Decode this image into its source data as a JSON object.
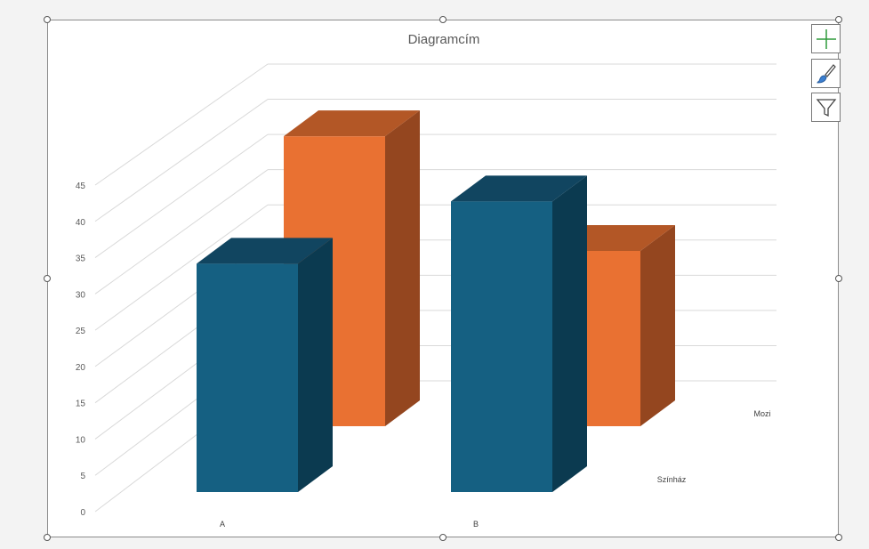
{
  "chart_data": {
    "type": "bar",
    "title": "Diagramcím",
    "categories": [
      "A",
      "B"
    ],
    "series": [
      {
        "name": "Színház",
        "values": [
          33,
          42
        ]
      },
      {
        "name": "Mozi",
        "values": [
          43,
          26
        ]
      }
    ],
    "yticks": [
      "0",
      "5",
      "10",
      "15",
      "20",
      "25",
      "30",
      "35",
      "40",
      "45"
    ],
    "ylim": [
      0,
      45
    ],
    "grid": true,
    "legend": "none"
  },
  "colors": {
    "series_front": [
      "#156082",
      "#E97132"
    ],
    "series_side": [
      "#0B3A50",
      "#94461F"
    ],
    "series_top": [
      "#114560",
      "#B35726"
    ],
    "grid": "#d9d9d9",
    "frame": "#8c8c8c"
  },
  "tools": {
    "add_icon": "plus-icon",
    "style_icon": "brush-icon",
    "filter_icon": "funnel-icon"
  }
}
